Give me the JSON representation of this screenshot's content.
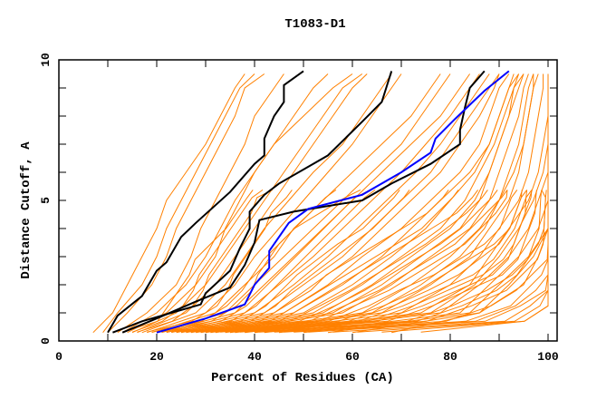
{
  "chart_data": {
    "type": "line",
    "title": "T1083-D1",
    "xlabel": "Percent of Residues (CA)",
    "ylabel": "Distance Cutoff, A",
    "xlim": [
      0,
      102
    ],
    "ylim": [
      0,
      10
    ],
    "x_ticks": [
      "0",
      "20",
      "40",
      "60",
      "80",
      "100"
    ],
    "x_tick_values": [
      0,
      20,
      40,
      60,
      80,
      100
    ],
    "y_ticks": [
      "0",
      "5",
      "10"
    ],
    "y_tick_values": [
      0,
      5,
      10
    ],
    "colors": {
      "models": "#ff8000",
      "highlight": "#000000",
      "best": "#0000ff"
    },
    "model_levels": [
      0.3,
      1,
      2,
      3,
      4,
      5,
      6,
      7,
      8,
      9,
      9.5
    ],
    "model_curves_x": [
      [
        7,
        11,
        14,
        17,
        20,
        22,
        26,
        30,
        33,
        36,
        38
      ],
      [
        9,
        12,
        17,
        20,
        22,
        25,
        28,
        31,
        34,
        37,
        40
      ],
      [
        10,
        14,
        19,
        22,
        24,
        27,
        30,
        33,
        36,
        38,
        42
      ],
      [
        12,
        18,
        24,
        27,
        29,
        32,
        35,
        38,
        40,
        44,
        46
      ],
      [
        13,
        20,
        26,
        30,
        33,
        36,
        40,
        44,
        50,
        56,
        60
      ],
      [
        14,
        22,
        28,
        32,
        34,
        37,
        40,
        44,
        48,
        52,
        55
      ],
      [
        15,
        24,
        30,
        34,
        38,
        42,
        46,
        50,
        54,
        58,
        62
      ],
      [
        16,
        26,
        32,
        36,
        40,
        44,
        48,
        52,
        56,
        60,
        63
      ],
      [
        17,
        28,
        34,
        38,
        42,
        47,
        52,
        58,
        62,
        66,
        68
      ],
      [
        18,
        30,
        36,
        40,
        45,
        50,
        55,
        60,
        64,
        68,
        70
      ],
      [
        19,
        32,
        38,
        44,
        48,
        54,
        60,
        66,
        72,
        76,
        78
      ],
      [
        20,
        34,
        40,
        46,
        52,
        58,
        64,
        70,
        74,
        78,
        80
      ],
      [
        21,
        36,
        42,
        48,
        54,
        60,
        66,
        72,
        78,
        82,
        84
      ],
      [
        22,
        38,
        45,
        52,
        58,
        64,
        70,
        75,
        80,
        84,
        86
      ],
      [
        23,
        40,
        48,
        55,
        61,
        67,
        73,
        78,
        82,
        86,
        88
      ],
      [
        24,
        42,
        50,
        58,
        64,
        70,
        76,
        80,
        84,
        88,
        90
      ],
      [
        25,
        44,
        52,
        60,
        66,
        72,
        78,
        82,
        86,
        89,
        90
      ],
      [
        26,
        46,
        55,
        62,
        70,
        76,
        82,
        86,
        88,
        90,
        92
      ],
      [
        27,
        48,
        58,
        66,
        72,
        78,
        84,
        88,
        90,
        92,
        93
      ],
      [
        28,
        50,
        60,
        68,
        75,
        80,
        85,
        88,
        90,
        92,
        94
      ],
      [
        29,
        52,
        62,
        70,
        78,
        83,
        86,
        89,
        91,
        93,
        95
      ],
      [
        30,
        54,
        64,
        72,
        80,
        85,
        88,
        90,
        92,
        94,
        95
      ],
      [
        31,
        56,
        66,
        74,
        82,
        86,
        88,
        90,
        92,
        93,
        94
      ],
      [
        32,
        58,
        68,
        76,
        84,
        88,
        90,
        92,
        94,
        95,
        96
      ],
      [
        34,
        62,
        72,
        80,
        86,
        90,
        92,
        94,
        95,
        96,
        97
      ],
      [
        35,
        64,
        74,
        82,
        87,
        90,
        93,
        95,
        96,
        97,
        97
      ],
      [
        36,
        66,
        76,
        84,
        88,
        92,
        94,
        95,
        96,
        97,
        98
      ],
      [
        38,
        70,
        80,
        86,
        90,
        94,
        96,
        97,
        98,
        99,
        99
      ],
      [
        40,
        74,
        84,
        88,
        92,
        96,
        98,
        99,
        100,
        100,
        100
      ],
      [
        42,
        76,
        85,
        90,
        94,
        97,
        99,
        100,
        100,
        100,
        100
      ],
      [
        45,
        78,
        86,
        92,
        96,
        98,
        100,
        100,
        100,
        100,
        100
      ],
      [
        50,
        82,
        88,
        94,
        98,
        100,
        100,
        100,
        100,
        100,
        100
      ],
      [
        55,
        84,
        90,
        96,
        100,
        100,
        100,
        100,
        100,
        100,
        100
      ],
      [
        60,
        86,
        92,
        97,
        100,
        100,
        100,
        100,
        100,
        100,
        100
      ],
      [
        68,
        86,
        95,
        98,
        100,
        100,
        100,
        100,
        100,
        100,
        100
      ]
    ],
    "highlight_curves": [
      [
        [
          10,
          0.3
        ],
        [
          12,
          0.9
        ],
        [
          17,
          1.6
        ],
        [
          20,
          2.5
        ],
        [
          22,
          2.8
        ],
        [
          25,
          3.7
        ],
        [
          28,
          4.2
        ],
        [
          35,
          5.3
        ],
        [
          40,
          6.3
        ],
        [
          42,
          6.6
        ],
        [
          42,
          7.2
        ],
        [
          44,
          8
        ],
        [
          46,
          8.5
        ],
        [
          46,
          9.1
        ],
        [
          50,
          9.6
        ]
      ],
      [
        [
          11,
          0.3
        ],
        [
          17,
          0.7
        ],
        [
          29,
          1.3
        ],
        [
          30,
          1.7
        ],
        [
          35,
          2.5
        ],
        [
          37,
          3.3
        ],
        [
          39,
          4
        ],
        [
          39,
          4.6
        ],
        [
          42,
          5.2
        ],
        [
          45,
          5.6
        ],
        [
          55,
          6.6
        ],
        [
          62,
          7.8
        ],
        [
          66,
          8.5
        ],
        [
          68,
          9.6
        ]
      ],
      [
        [
          13,
          0.3
        ],
        [
          20,
          0.8
        ],
        [
          28,
          1.4
        ],
        [
          35,
          1.9
        ],
        [
          38,
          2.7
        ],
        [
          40,
          3.5
        ],
        [
          41,
          4.3
        ],
        [
          48,
          4.6
        ],
        [
          62,
          5
        ],
        [
          68,
          5.6
        ],
        [
          76,
          6.3
        ],
        [
          82,
          7
        ],
        [
          82,
          7.5
        ],
        [
          83,
          8.3
        ],
        [
          84,
          9
        ],
        [
          87,
          9.6
        ]
      ]
    ],
    "best_curve": [
      [
        20,
        0.3
      ],
      [
        30,
        0.8
      ],
      [
        38,
        1.3
      ],
      [
        40,
        2
      ],
      [
        43,
        2.6
      ],
      [
        43,
        3.2
      ],
      [
        47,
        4.2
      ],
      [
        51,
        4.7
      ],
      [
        62,
        5.2
      ],
      [
        70,
        6
      ],
      [
        76,
        6.7
      ],
      [
        77,
        7.2
      ],
      [
        81,
        7.9
      ],
      [
        84,
        8.4
      ],
      [
        87,
        8.9
      ],
      [
        92,
        9.6
      ]
    ]
  }
}
